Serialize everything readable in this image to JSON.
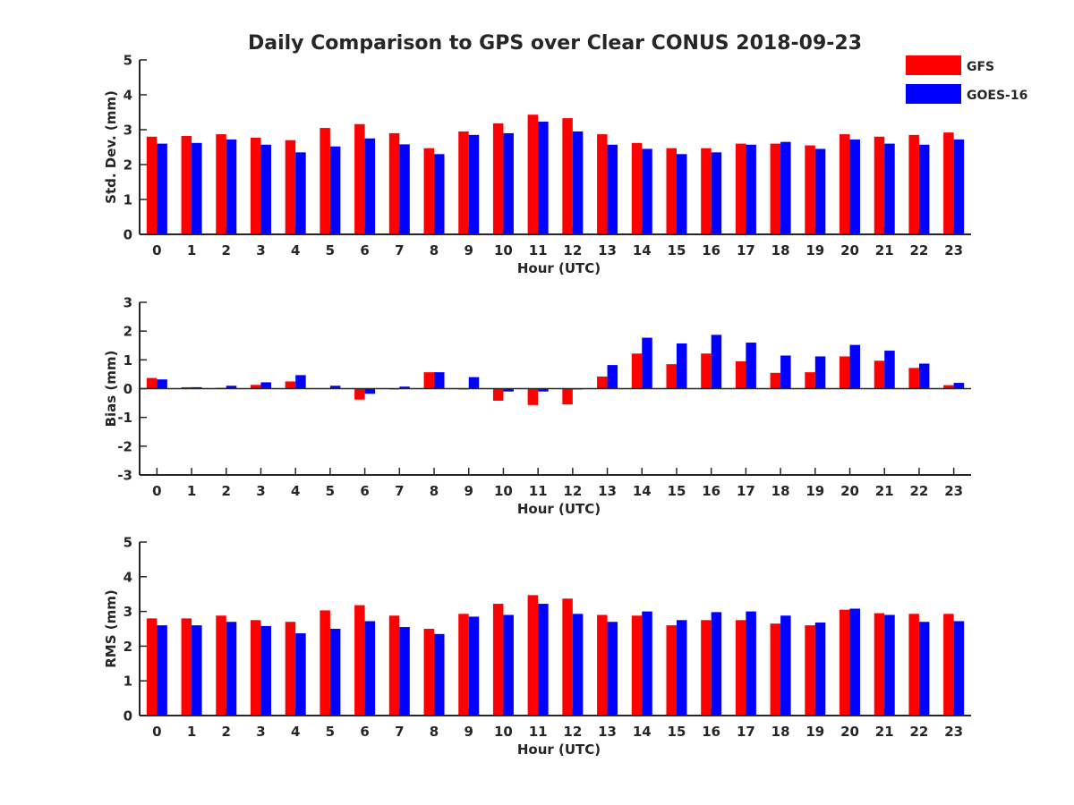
{
  "title": "Daily Comparison to GPS over Clear CONUS 2018-09-23",
  "legend": {
    "placement": "top-right",
    "entries": [
      {
        "name": "GFS",
        "color": "#ff0000"
      },
      {
        "name": "GOES-16",
        "color": "#0000ff"
      }
    ]
  },
  "chart_data": [
    {
      "type": "bar",
      "ylabel": "Std. Dev. (mm)",
      "xlabel": "Hour (UTC)",
      "ylim": [
        0,
        5
      ],
      "yticks": [
        "0",
        "1",
        "2",
        "3",
        "4",
        "5"
      ],
      "categories": [
        "0",
        "1",
        "2",
        "3",
        "4",
        "5",
        "6",
        "7",
        "8",
        "9",
        "10",
        "11",
        "12",
        "13",
        "14",
        "15",
        "16",
        "17",
        "18",
        "19",
        "20",
        "21",
        "22",
        "23"
      ],
      "series": [
        {
          "name": "GFS",
          "color": "#ff0000",
          "values": [
            2.8,
            2.82,
            2.87,
            2.77,
            2.7,
            3.05,
            3.16,
            2.9,
            2.47,
            2.95,
            3.18,
            3.43,
            3.33,
            2.87,
            2.62,
            2.47,
            2.47,
            2.6,
            2.6,
            2.55,
            2.87,
            2.8,
            2.85,
            2.92
          ]
        },
        {
          "name": "GOES-16",
          "color": "#0000ff",
          "values": [
            2.6,
            2.62,
            2.72,
            2.57,
            2.35,
            2.52,
            2.75,
            2.58,
            2.3,
            2.85,
            2.9,
            3.23,
            2.95,
            2.57,
            2.45,
            2.3,
            2.35,
            2.57,
            2.65,
            2.45,
            2.72,
            2.6,
            2.57,
            2.72
          ]
        }
      ]
    },
    {
      "type": "bar",
      "ylabel": "Bias (mm)",
      "xlabel": "Hour (UTC)",
      "ylim": [
        -3,
        3
      ],
      "yticks": [
        "-3",
        "-2",
        "-1",
        "0",
        "1",
        "2",
        "3"
      ],
      "categories": [
        "0",
        "1",
        "2",
        "3",
        "4",
        "5",
        "6",
        "7",
        "8",
        "9",
        "10",
        "11",
        "12",
        "13",
        "14",
        "15",
        "16",
        "17",
        "18",
        "19",
        "20",
        "21",
        "22",
        "23"
      ],
      "series": [
        {
          "name": "GFS",
          "color": "#ff0000",
          "values": [
            0.37,
            0.05,
            0.03,
            0.13,
            0.25,
            0.01,
            -0.38,
            -0.03,
            0.57,
            -0.03,
            -0.42,
            -0.57,
            -0.55,
            0.42,
            1.22,
            0.85,
            1.22,
            0.95,
            0.55,
            0.57,
            1.12,
            0.97,
            0.72,
            0.12
          ]
        },
        {
          "name": "GOES-16",
          "color": "#0000ff",
          "values": [
            0.32,
            0.05,
            0.1,
            0.22,
            0.47,
            0.1,
            -0.18,
            0.07,
            0.57,
            0.4,
            -0.1,
            -0.1,
            -0.03,
            0.82,
            1.77,
            1.57,
            1.87,
            1.6,
            1.15,
            1.12,
            1.52,
            1.32,
            0.87,
            0.2
          ]
        }
      ]
    },
    {
      "type": "bar",
      "ylabel": "RMS (mm)",
      "xlabel": "Hour (UTC)",
      "ylim": [
        0,
        5
      ],
      "yticks": [
        "0",
        "1",
        "2",
        "3",
        "4",
        "5"
      ],
      "categories": [
        "0",
        "1",
        "2",
        "3",
        "4",
        "5",
        "6",
        "7",
        "8",
        "9",
        "10",
        "11",
        "12",
        "13",
        "14",
        "15",
        "16",
        "17",
        "18",
        "19",
        "20",
        "21",
        "22",
        "23"
      ],
      "series": [
        {
          "name": "GFS",
          "color": "#ff0000",
          "values": [
            2.8,
            2.8,
            2.88,
            2.75,
            2.7,
            3.03,
            3.18,
            2.88,
            2.5,
            2.93,
            3.22,
            3.47,
            3.37,
            2.9,
            2.88,
            2.6,
            2.75,
            2.75,
            2.65,
            2.6,
            3.05,
            2.95,
            2.93,
            2.93
          ]
        },
        {
          "name": "GOES-16",
          "color": "#0000ff",
          "values": [
            2.6,
            2.6,
            2.7,
            2.58,
            2.37,
            2.5,
            2.72,
            2.55,
            2.35,
            2.85,
            2.9,
            3.22,
            2.93,
            2.7,
            3.0,
            2.75,
            2.98,
            3.0,
            2.88,
            2.68,
            3.08,
            2.9,
            2.7,
            2.72
          ]
        }
      ]
    }
  ]
}
